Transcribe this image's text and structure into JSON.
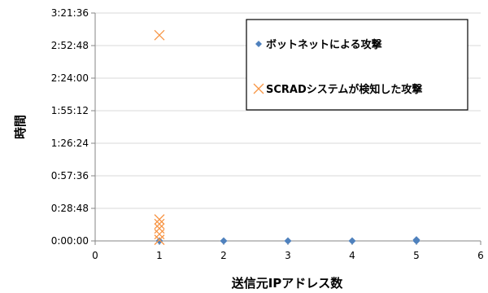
{
  "chart_data": {
    "type": "scatter",
    "xlabel": "送信元IPアドレス数",
    "ylabel": "時間",
    "xlim": [
      0,
      6
    ],
    "x_ticks": [
      "0",
      "1",
      "2",
      "3",
      "4",
      "5",
      "6"
    ],
    "ylim_seconds": [
      0,
      12096
    ],
    "y_ticks": [
      "0:00:00",
      "0:28:48",
      "0:57:36",
      "1:26:24",
      "1:55:12",
      "2:24:00",
      "2:52:48",
      "3:21:36"
    ],
    "grid": "horizontal",
    "legend_position": "top-right",
    "series": [
      {
        "name": "ボットネットによる攻撃",
        "marker": "diamond",
        "color": "#4f81bd",
        "points": [
          {
            "x": 1,
            "y": "0:00:00"
          },
          {
            "x": 2,
            "y": "0:00:00"
          },
          {
            "x": 3,
            "y": "0:00:00"
          },
          {
            "x": 4,
            "y": "0:00:00"
          },
          {
            "x": 5,
            "y": "0:00:00"
          },
          {
            "x": 5,
            "y": "0:01:00"
          }
        ]
      },
      {
        "name": "SCRADシステムが検知した攻撃",
        "marker": "x",
        "color": "#f79646",
        "points": [
          {
            "x": 1,
            "y": "3:02:00"
          },
          {
            "x": 1,
            "y": "0:19:00"
          },
          {
            "x": 1,
            "y": "0:15:00"
          },
          {
            "x": 1,
            "y": "0:11:00"
          },
          {
            "x": 1,
            "y": "0:06:00"
          },
          {
            "x": 1,
            "y": "0:01:00"
          }
        ]
      }
    ]
  }
}
